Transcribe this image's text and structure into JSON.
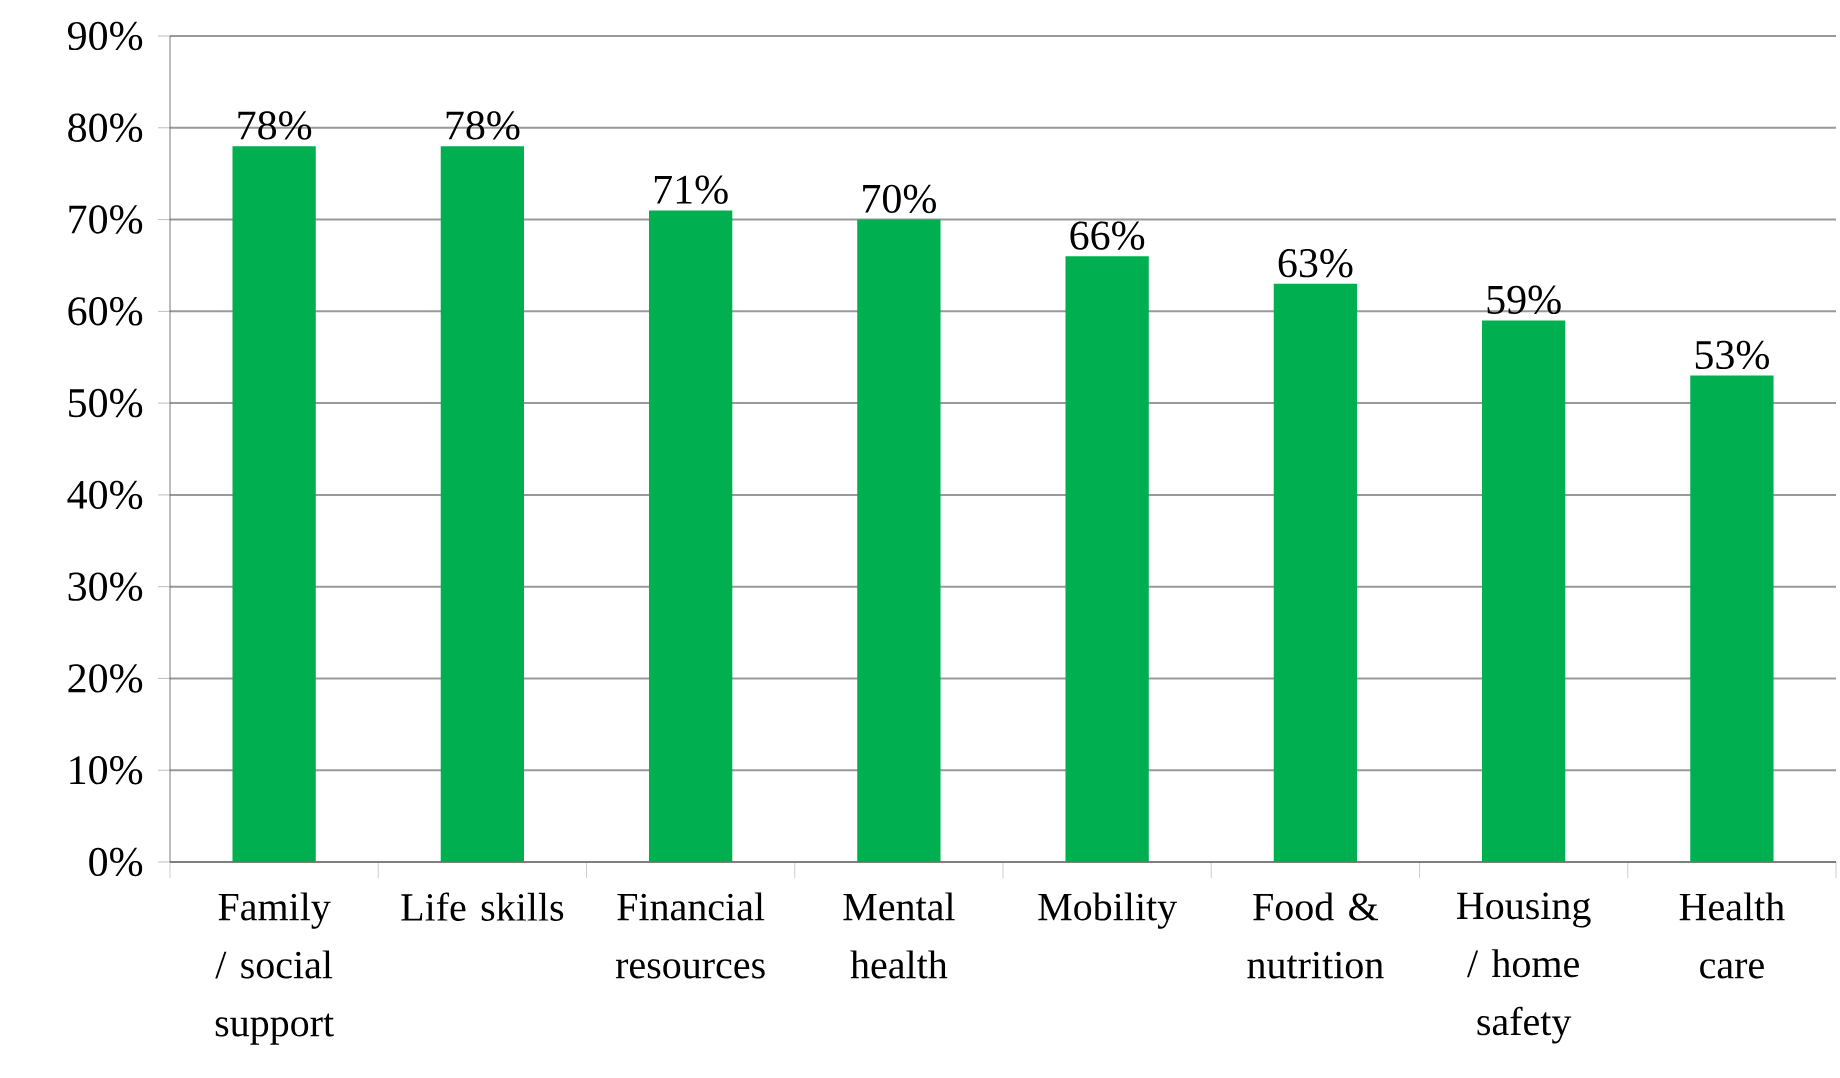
{
  "chart_data": {
    "type": "bar",
    "categories": [
      "Family / social support",
      "Life skills",
      "Financial resources",
      "Mental health",
      "Mobility",
      "Food & nutrition",
      "Housing / home safety",
      "Health care"
    ],
    "values": [
      78,
      78,
      71,
      70,
      66,
      63,
      59,
      53
    ],
    "value_labels": [
      "78%",
      "78%",
      "71%",
      "70%",
      "66%",
      "63%",
      "59%",
      "53%"
    ],
    "color": "#00b050",
    "ylim": [
      0,
      90
    ],
    "yticks": [
      {
        "value": 0,
        "label": "0%"
      },
      {
        "value": 10,
        "label": "10%"
      },
      {
        "value": 20,
        "label": "20%"
      },
      {
        "value": 30,
        "label": "30%"
      },
      {
        "value": 40,
        "label": "40%"
      },
      {
        "value": 50,
        "label": "50%"
      },
      {
        "value": 60,
        "label": "60%"
      },
      {
        "value": 70,
        "label": "70%"
      },
      {
        "value": 80,
        "label": "80%"
      },
      {
        "value": 90,
        "label": "90%"
      }
    ],
    "grid": "y"
  }
}
